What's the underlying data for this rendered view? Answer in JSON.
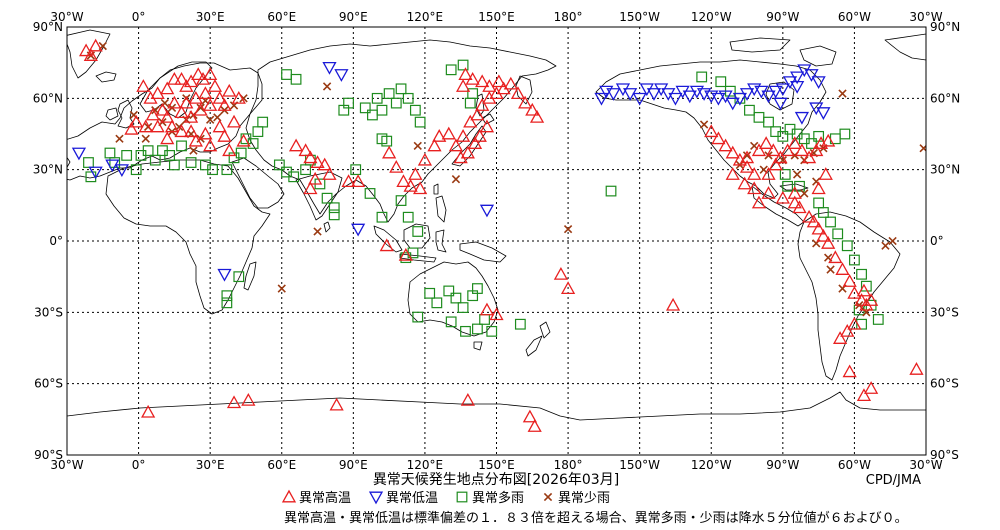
{
  "title": "異常天候発生地点分布図[2026年03月]",
  "credit": "CPD/JMA",
  "note": "異常高温・異常低温は標準偏差の１．８３倍を超える場合、異常多雨・少雨は降水５分位値が６および０。",
  "colors": {
    "hot": "#e82020",
    "cold": "#1a1ad8",
    "wet": "#1e8c1e",
    "dry": "#9a3a12",
    "land": "#000000",
    "grid": "#000000"
  },
  "axes": {
    "lon_min": -30,
    "lon_max": 330,
    "lat_min": -90,
    "lat_max": 90,
    "lon_ticks": [
      {
        "lon": -30,
        "label": "30°W"
      },
      {
        "lon": 0,
        "label": "0°"
      },
      {
        "lon": 30,
        "label": "30°E"
      },
      {
        "lon": 60,
        "label": "60°E"
      },
      {
        "lon": 90,
        "label": "90°E"
      },
      {
        "lon": 120,
        "label": "120°E"
      },
      {
        "lon": 150,
        "label": "150°E"
      },
      {
        "lon": 180,
        "label": "180°"
      },
      {
        "lon": 210,
        "label": "150°W"
      },
      {
        "lon": 240,
        "label": "120°W"
      },
      {
        "lon": 270,
        "label": "90°W"
      },
      {
        "lon": 300,
        "label": "60°W"
      },
      {
        "lon": 330,
        "label": "30°W"
      }
    ],
    "lat_ticks": [
      {
        "lat": 90,
        "label": "90°N"
      },
      {
        "lat": 60,
        "label": "60°N"
      },
      {
        "lat": 30,
        "label": "30°N"
      },
      {
        "lat": 0,
        "label": "0°"
      },
      {
        "lat": -30,
        "label": "30°S"
      },
      {
        "lat": -60,
        "label": "60°S"
      },
      {
        "lat": -90,
        "label": "90°S"
      }
    ]
  },
  "legend": [
    {
      "key": "hot",
      "label": "異常高温",
      "symbol": "triangle-up"
    },
    {
      "key": "cold",
      "label": "異常低温",
      "symbol": "triangle-down"
    },
    {
      "key": "wet",
      "label": "異常多雨",
      "symbol": "square"
    },
    {
      "key": "dry",
      "label": "異常少雨",
      "symbol": "cross"
    }
  ],
  "chart_data": {
    "type": "scatter",
    "hot": [
      [
        -18,
        82
      ],
      [
        -20,
        78
      ],
      [
        -22,
        80
      ],
      [
        -3,
        47
      ],
      [
        2,
        65
      ],
      [
        5,
        60
      ],
      [
        8,
        62
      ],
      [
        12,
        64
      ],
      [
        15,
        68
      ],
      [
        18,
        68
      ],
      [
        20,
        65
      ],
      [
        22,
        67
      ],
      [
        25,
        70
      ],
      [
        27,
        68
      ],
      [
        30,
        70
      ],
      [
        32,
        65
      ],
      [
        28,
        62
      ],
      [
        24,
        60
      ],
      [
        20,
        58
      ],
      [
        15,
        58
      ],
      [
        10,
        55
      ],
      [
        6,
        53
      ],
      [
        12,
        52
      ],
      [
        18,
        54
      ],
      [
        22,
        52
      ],
      [
        26,
        55
      ],
      [
        30,
        57
      ],
      [
        34,
        60
      ],
      [
        38,
        63
      ],
      [
        36,
        57
      ],
      [
        42,
        60
      ],
      [
        -1,
        50
      ],
      [
        3,
        48
      ],
      [
        8,
        48
      ],
      [
        14,
        48
      ],
      [
        18,
        46
      ],
      [
        22,
        46
      ],
      [
        28,
        45
      ],
      [
        34,
        48
      ],
      [
        40,
        50
      ],
      [
        36,
        44
      ],
      [
        44,
        42
      ],
      [
        12,
        43
      ],
      [
        24,
        42
      ],
      [
        30,
        40
      ],
      [
        38,
        38
      ],
      [
        66,
        40
      ],
      [
        70,
        38
      ],
      [
        72,
        35
      ],
      [
        75,
        33
      ],
      [
        78,
        32
      ],
      [
        80,
        28
      ],
      [
        74,
        26
      ],
      [
        72,
        22
      ],
      [
        88,
        25
      ],
      [
        92,
        25
      ],
      [
        105,
        37
      ],
      [
        108,
        31
      ],
      [
        111,
        25
      ],
      [
        116,
        28
      ],
      [
        114,
        23
      ],
      [
        118,
        22
      ],
      [
        120,
        34
      ],
      [
        124,
        40
      ],
      [
        126,
        44
      ],
      [
        130,
        45
      ],
      [
        133,
        40
      ],
      [
        135,
        35
      ],
      [
        138,
        37
      ],
      [
        141,
        41
      ],
      [
        143,
        44
      ],
      [
        146,
        48
      ],
      [
        136,
        44
      ],
      [
        139,
        50
      ],
      [
        142,
        53
      ],
      [
        144,
        57
      ],
      [
        147,
        60
      ],
      [
        150,
        62
      ],
      [
        153,
        64
      ],
      [
        156,
        66
      ],
      [
        159,
        62
      ],
      [
        162,
        58
      ],
      [
        165,
        55
      ],
      [
        167,
        52
      ],
      [
        137,
        70
      ],
      [
        140,
        68
      ],
      [
        144,
        67
      ],
      [
        147,
        65
      ],
      [
        151,
        67
      ],
      [
        136,
        65
      ],
      [
        104,
        -2
      ],
      [
        112,
        -6
      ],
      [
        150,
        -31
      ],
      [
        146,
        -29
      ],
      [
        177,
        -14
      ],
      [
        180,
        -20
      ],
      [
        224,
        -27
      ],
      [
        138,
        -67
      ],
      [
        83,
        -69
      ],
      [
        4,
        -72
      ],
      [
        40,
        -68
      ],
      [
        46,
        -67
      ],
      [
        164,
        -74
      ],
      [
        166,
        -78
      ],
      [
        240,
        46
      ],
      [
        243,
        43
      ],
      [
        246,
        40
      ],
      [
        249,
        37
      ],
      [
        252,
        34
      ],
      [
        255,
        31
      ],
      [
        258,
        28
      ],
      [
        255,
        35
      ],
      [
        260,
        38
      ],
      [
        263,
        41
      ],
      [
        266,
        38
      ],
      [
        269,
        35
      ],
      [
        272,
        38
      ],
      [
        275,
        41
      ],
      [
        278,
        38
      ],
      [
        281,
        35
      ],
      [
        284,
        38
      ],
      [
        286,
        41
      ],
      [
        289,
        42
      ],
      [
        267,
        32
      ],
      [
        264,
        28
      ],
      [
        258,
        22
      ],
      [
        264,
        20
      ],
      [
        270,
        18
      ],
      [
        275,
        16
      ],
      [
        254,
        24
      ],
      [
        249,
        28
      ],
      [
        260,
        16
      ],
      [
        275,
        20
      ],
      [
        277,
        14
      ],
      [
        281,
        10
      ],
      [
        283,
        8
      ],
      [
        285,
        5
      ],
      [
        287,
        2
      ],
      [
        289,
        -1
      ],
      [
        292,
        -7
      ],
      [
        295,
        -12
      ],
      [
        298,
        -17
      ],
      [
        300,
        -22
      ],
      [
        303,
        -25
      ],
      [
        305,
        -27
      ],
      [
        307,
        -25
      ],
      [
        304,
        -21
      ],
      [
        300,
        -35
      ],
      [
        297,
        -38
      ],
      [
        294,
        -41
      ],
      [
        298,
        -55
      ],
      [
        304,
        -65
      ],
      [
        307,
        -62
      ],
      [
        326,
        -54
      ],
      [
        285,
        22
      ],
      [
        288,
        28
      ]
    ],
    "cold": [
      [
        -25,
        37
      ],
      [
        -18,
        29
      ],
      [
        -11,
        32
      ],
      [
        -7,
        30
      ],
      [
        36,
        -14
      ],
      [
        80,
        73
      ],
      [
        85,
        70
      ],
      [
        92,
        5
      ],
      [
        146,
        13
      ],
      [
        194,
        60
      ],
      [
        196,
        63
      ],
      [
        199,
        62
      ],
      [
        203,
        64
      ],
      [
        206,
        62
      ],
      [
        210,
        60
      ],
      [
        213,
        64
      ],
      [
        216,
        62
      ],
      [
        219,
        64
      ],
      [
        222,
        62
      ],
      [
        225,
        60
      ],
      [
        228,
        63
      ],
      [
        231,
        61
      ],
      [
        234,
        63
      ],
      [
        237,
        62
      ],
      [
        240,
        61
      ],
      [
        243,
        60
      ],
      [
        246,
        61
      ],
      [
        249,
        58
      ],
      [
        252,
        60
      ],
      [
        255,
        62
      ],
      [
        258,
        64
      ],
      [
        261,
        63
      ],
      [
        264,
        61
      ],
      [
        267,
        63
      ],
      [
        270,
        64
      ],
      [
        273,
        67
      ],
      [
        276,
        69
      ],
      [
        279,
        72
      ],
      [
        282,
        70
      ],
      [
        285,
        67
      ],
      [
        276,
        65
      ],
      [
        269,
        58
      ],
      [
        278,
        52
      ],
      [
        284,
        56
      ],
      [
        287,
        54
      ]
    ],
    "wet": [
      [
        -21,
        33
      ],
      [
        -20,
        27
      ],
      [
        -12,
        37
      ],
      [
        -10,
        33
      ],
      [
        -5,
        36
      ],
      [
        -1,
        30
      ],
      [
        1,
        36
      ],
      [
        4,
        38
      ],
      [
        7,
        34
      ],
      [
        10,
        38
      ],
      [
        13,
        36
      ],
      [
        15,
        32
      ],
      [
        18,
        40
      ],
      [
        22,
        33
      ],
      [
        28,
        32
      ],
      [
        31,
        30
      ],
      [
        37,
        30
      ],
      [
        40,
        35
      ],
      [
        43,
        37
      ],
      [
        45,
        43
      ],
      [
        48,
        41
      ],
      [
        50,
        46
      ],
      [
        52,
        50
      ],
      [
        62,
        70
      ],
      [
        66,
        68
      ],
      [
        59,
        32
      ],
      [
        62,
        29
      ],
      [
        65,
        27
      ],
      [
        70,
        30
      ],
      [
        72,
        34
      ],
      [
        76,
        24
      ],
      [
        79,
        18
      ],
      [
        82,
        14
      ],
      [
        82,
        11
      ],
      [
        86,
        55
      ],
      [
        88,
        58
      ],
      [
        95,
        56
      ],
      [
        98,
        53
      ],
      [
        100,
        60
      ],
      [
        102,
        55
      ],
      [
        105,
        62
      ],
      [
        108,
        58
      ],
      [
        110,
        64
      ],
      [
        113,
        60
      ],
      [
        116,
        55
      ],
      [
        118,
        50
      ],
      [
        131,
        72
      ],
      [
        136,
        74
      ],
      [
        140,
        62
      ],
      [
        139,
        58
      ],
      [
        102,
        43
      ],
      [
        104,
        42
      ],
      [
        91,
        30
      ],
      [
        97,
        20
      ],
      [
        102,
        10
      ],
      [
        110,
        17
      ],
      [
        113,
        10
      ],
      [
        117,
        4
      ],
      [
        115,
        -5
      ],
      [
        112,
        -7
      ],
      [
        122,
        -22
      ],
      [
        125,
        -26
      ],
      [
        130,
        -21
      ],
      [
        133,
        -24
      ],
      [
        136,
        -28
      ],
      [
        140,
        -23
      ],
      [
        142,
        -20
      ],
      [
        145,
        -33
      ],
      [
        142,
        -37
      ],
      [
        137,
        -38
      ],
      [
        131,
        -34
      ],
      [
        117,
        -32
      ],
      [
        148,
        -38
      ],
      [
        160,
        -35
      ],
      [
        37,
        -23
      ],
      [
        37,
        -26
      ],
      [
        42,
        -15
      ],
      [
        198,
        21
      ],
      [
        236,
        69
      ],
      [
        244,
        67
      ],
      [
        248,
        63
      ],
      [
        252,
        60
      ],
      [
        256,
        55
      ],
      [
        260,
        52
      ],
      [
        264,
        50
      ],
      [
        267,
        46
      ],
      [
        270,
        44
      ],
      [
        273,
        47
      ],
      [
        276,
        45
      ],
      [
        279,
        43
      ],
      [
        282,
        41
      ],
      [
        285,
        44
      ],
      [
        292,
        43
      ],
      [
        296,
        45
      ],
      [
        271,
        28
      ],
      [
        272,
        23
      ],
      [
        277,
        23
      ],
      [
        285,
        16
      ],
      [
        287,
        12
      ],
      [
        290,
        8
      ],
      [
        293,
        3
      ],
      [
        297,
        -2
      ],
      [
        300,
        -8
      ],
      [
        303,
        -14
      ],
      [
        305,
        -19
      ],
      [
        307,
        -27
      ],
      [
        310,
        -33
      ],
      [
        302,
        -29
      ],
      [
        303,
        -35
      ]
    ],
    "dry": [
      [
        -15,
        82
      ],
      [
        -20,
        78
      ],
      [
        -8,
        43
      ],
      [
        -2,
        53
      ],
      [
        4,
        48
      ],
      [
        10,
        50
      ],
      [
        14,
        46
      ],
      [
        17,
        48
      ],
      [
        20,
        51
      ],
      [
        23,
        53
      ],
      [
        26,
        56
      ],
      [
        28,
        59
      ],
      [
        30,
        51
      ],
      [
        33,
        52
      ],
      [
        36,
        55
      ],
      [
        40,
        57
      ],
      [
        44,
        60
      ],
      [
        22,
        45
      ],
      [
        26,
        43
      ],
      [
        14,
        56
      ],
      [
        11,
        58
      ],
      [
        7,
        55
      ],
      [
        20,
        60
      ],
      [
        3,
        43
      ],
      [
        23,
        38
      ],
      [
        60,
        -20
      ],
      [
        75,
        4
      ],
      [
        79,
        65
      ],
      [
        117,
        40
      ],
      [
        133,
        26
      ],
      [
        180,
        5
      ],
      [
        252,
        32
      ],
      [
        258,
        40
      ],
      [
        255,
        36
      ],
      [
        264,
        36
      ],
      [
        270,
        34
      ],
      [
        275,
        36
      ],
      [
        279,
        34
      ],
      [
        283,
        37
      ],
      [
        287,
        39
      ],
      [
        262,
        30
      ],
      [
        276,
        28
      ],
      [
        284,
        25
      ],
      [
        279,
        20
      ],
      [
        284,
        -1
      ],
      [
        290,
        -12
      ],
      [
        295,
        -20
      ],
      [
        302,
        -27
      ],
      [
        305,
        -30
      ],
      [
        316,
        0
      ],
      [
        313,
        -2
      ],
      [
        289,
        -7
      ],
      [
        237,
        49
      ],
      [
        329,
        39
      ],
      [
        295,
        62
      ]
    ]
  }
}
